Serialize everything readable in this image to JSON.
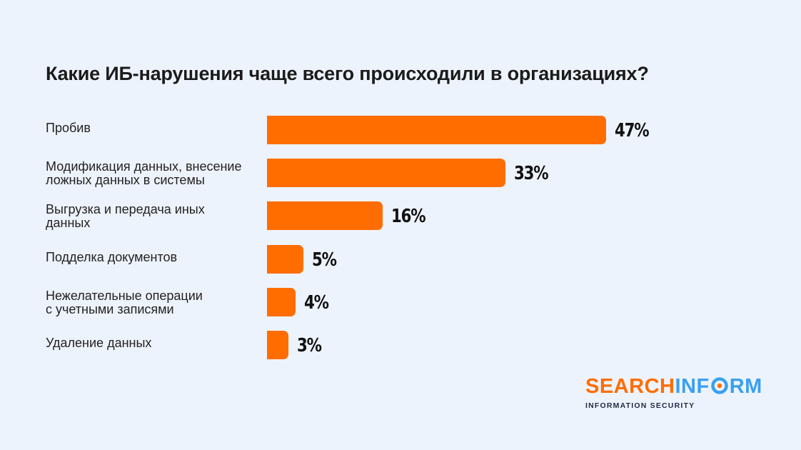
{
  "chart_data": {
    "type": "bar",
    "orientation": "horizontal",
    "title": "Какие ИБ-нарушения чаще всего происходили в организациях?",
    "categories": [
      [
        "Пробив"
      ],
      [
        "Модификация данных, внесение",
        "ложных данных в системы"
      ],
      [
        "Выгрузка и передача иных",
        "данных"
      ],
      [
        "Подделка документов"
      ],
      [
        "Нежелательные операции",
        "с учетными записями"
      ],
      [
        "Удаление данных"
      ]
    ],
    "values": [
      47,
      33,
      16,
      5,
      4,
      3
    ],
    "value_labels": [
      "47%",
      "33%",
      "16%",
      "5%",
      "4%",
      "3%"
    ],
    "bar_color": "#ff6d00",
    "xlim": [
      0,
      47
    ],
    "grid": false,
    "legend": "none"
  },
  "logo": {
    "part1": "SEARCH",
    "part2": "INF",
    "part3": "RM",
    "subtitle": "INFORMATION SECURITY",
    "color_orange": "#ff6d00",
    "color_blue": "#3aa0f0"
  }
}
